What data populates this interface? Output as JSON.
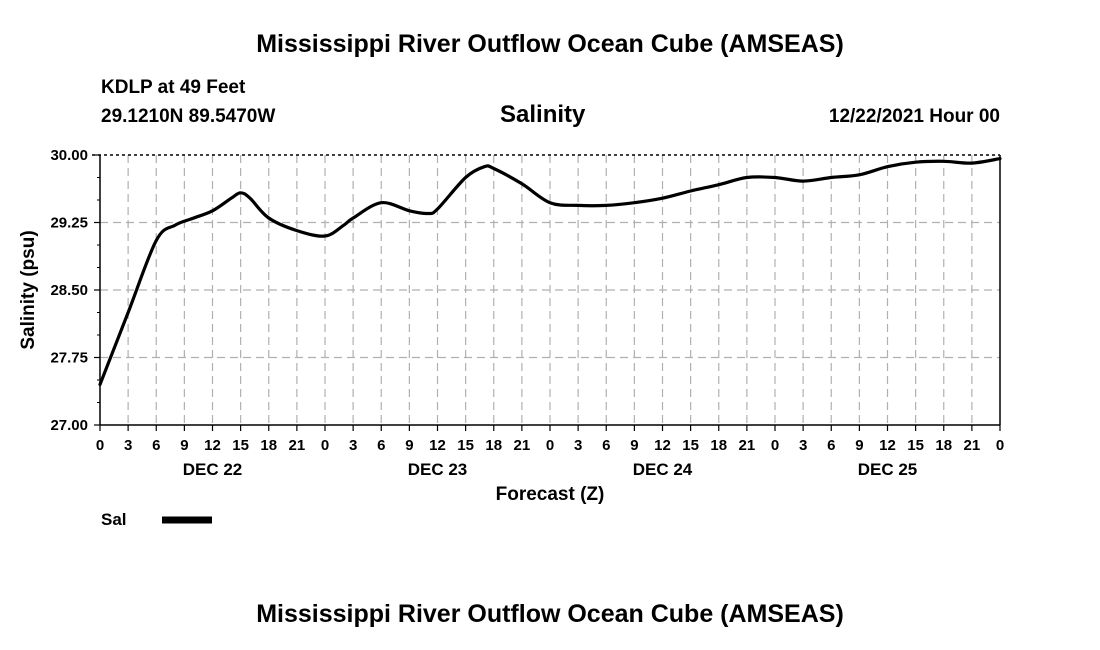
{
  "header": {
    "title": "Mississippi River Outflow Ocean Cube (AMSEAS)",
    "station": "KDLP at 49 Feet",
    "coords": "29.1210N  89.5470W",
    "date": "12/22/2021 Hour 00"
  },
  "chart_data": {
    "type": "line",
    "title": "Salinity",
    "xlabel": "Forecast (Z)",
    "ylabel": "Salinity (psu)",
    "ylim": [
      27.0,
      30.0
    ],
    "yticks": [
      "30.00",
      "29.25",
      "28.50",
      "27.75",
      "27.00"
    ],
    "xlim": [
      0,
      96
    ],
    "xtick_labels": [
      "0",
      "3",
      "6",
      "9",
      "12",
      "15",
      "18",
      "21",
      "0",
      "3",
      "6",
      "9",
      "12",
      "15",
      "18",
      "21",
      "0",
      "3",
      "6",
      "9",
      "12",
      "15",
      "18",
      "21",
      "0",
      "3",
      "6",
      "9",
      "12",
      "15",
      "18",
      "21",
      "0"
    ],
    "day_labels": [
      "DEC 22",
      "DEC 23",
      "DEC 24",
      "DEC 25"
    ],
    "grid": true,
    "legend": {
      "position": "bottom-left",
      "entries": [
        {
          "name": "Sal",
          "color": "#000000"
        }
      ]
    },
    "series": [
      {
        "name": "Sal",
        "x": [
          0,
          3,
          6,
          8,
          10,
          12,
          14,
          15,
          16,
          18,
          21,
          24,
          26,
          27,
          30,
          33,
          35,
          36,
          39,
          41,
          42,
          45,
          48,
          51,
          54,
          57,
          60,
          63,
          66,
          69,
          72,
          75,
          78,
          81,
          84,
          87,
          90,
          93,
          96
        ],
        "values": [
          27.45,
          28.25,
          29.05,
          29.22,
          29.3,
          29.38,
          29.52,
          29.58,
          29.52,
          29.3,
          29.16,
          29.1,
          29.22,
          29.3,
          29.47,
          29.38,
          29.35,
          29.4,
          29.75,
          29.87,
          29.85,
          29.68,
          29.47,
          29.44,
          29.44,
          29.47,
          29.52,
          29.6,
          29.67,
          29.75,
          29.75,
          29.71,
          29.75,
          29.78,
          29.87,
          29.92,
          29.93,
          29.91,
          29.96
        ]
      }
    ]
  },
  "footer": {
    "title": "Mississippi River Outflow Ocean Cube (AMSEAS)"
  }
}
